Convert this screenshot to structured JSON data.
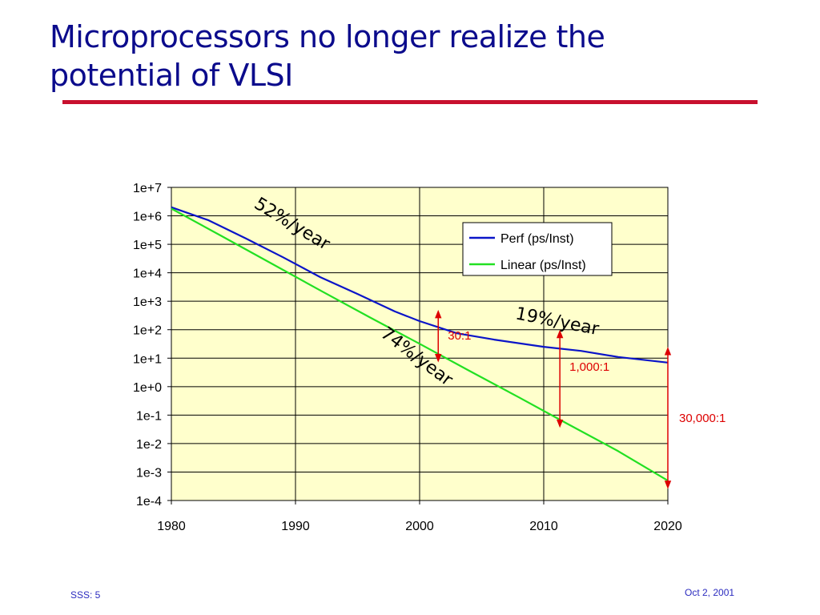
{
  "slide": {
    "title_line1": "Microprocessors no longer realize the",
    "title_line2": "potential of VLSI",
    "footer_left": "SSS: 5",
    "footer_right": "Oct 2, 2001",
    "accent_color": "#c8102e",
    "title_color": "#0b0b8c"
  },
  "chart_data": {
    "type": "line",
    "title": "",
    "xlabel": "",
    "ylabel": "",
    "y_scale": "log10",
    "xlim": [
      1980,
      2020
    ],
    "ylim_exponent": [
      -4,
      7
    ],
    "x_ticks": [
      "1980",
      "1990",
      "2000",
      "2010",
      "2020"
    ],
    "y_ticks": [
      "1e-4",
      "1e-3",
      "1e-2",
      "1e-1",
      "1e+0",
      "1e+1",
      "1e+2",
      "1e+3",
      "1e+4",
      "1e+5",
      "1e+6",
      "1e+7"
    ],
    "grid": true,
    "plot_background": "#ffffcc",
    "legend_position": "top-right",
    "series": [
      {
        "name": "Perf (ps/Inst)",
        "color": "#0a14c8",
        "points": [
          [
            1980,
            2000000.0
          ],
          [
            1983,
            700000.0
          ],
          [
            1986,
            160000.0
          ],
          [
            1989,
            35000.0
          ],
          [
            1992,
            7000.0
          ],
          [
            1995,
            1800.0
          ],
          [
            1998,
            440
          ],
          [
            2000,
            200
          ],
          [
            2003,
            75
          ],
          [
            2006,
            45
          ],
          [
            2010,
            25
          ],
          [
            2013,
            18
          ],
          [
            2016,
            11
          ],
          [
            2020,
            7
          ]
        ]
      },
      {
        "name": "Linear (ps/Inst)",
        "color": "#22e022",
        "points": [
          [
            1980,
            1800000.0
          ],
          [
            1984,
            200000.0
          ],
          [
            1988,
            22000.0
          ],
          [
            1992,
            2400.0
          ],
          [
            1996,
            270
          ],
          [
            2000,
            32
          ],
          [
            2004,
            3.6
          ],
          [
            2008,
            0.42
          ],
          [
            2012,
            0.047
          ],
          [
            2016,
            0.0054
          ],
          [
            2020,
            0.0005
          ]
        ]
      }
    ],
    "annotations": [
      {
        "text": "52%/year",
        "x": 1989.5,
        "y_exp": 5.55,
        "rotate": 31,
        "color": "#000000"
      },
      {
        "text": "74%/year",
        "x": 1999.5,
        "y_exp": 0.9,
        "rotate": 37,
        "color": "#000000"
      },
      {
        "text": "19%/year",
        "x": 2011,
        "y_exp": 2.1,
        "rotate": 11,
        "color": "#000000"
      }
    ],
    "ratios": [
      {
        "text": "30:1",
        "x": 2001.5,
        "y_top_exp": 2.55,
        "y_bot_exp": 1.0,
        "color": "#dd0000"
      },
      {
        "text": "1,000:1",
        "x": 2011.3,
        "y_top_exp": 1.85,
        "y_bot_exp": -1.3,
        "color": "#dd0000"
      },
      {
        "text": "30,000:1",
        "x": 2020,
        "y_top_exp": 1.25,
        "y_bot_exp": -3.45,
        "color": "#dd0000"
      }
    ]
  }
}
